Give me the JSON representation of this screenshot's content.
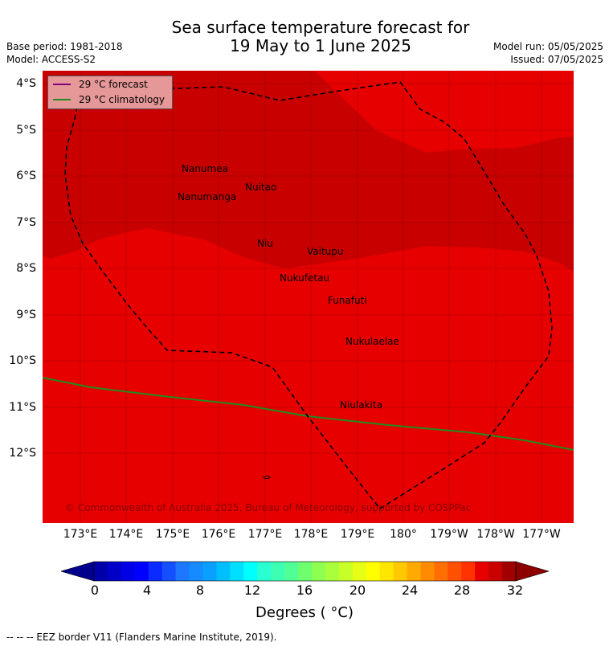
{
  "header": {
    "title_line1": "Sea surface temperature forecast for",
    "title_line2": "19 May to 1 June 2025",
    "base_period": "Base period: 1981-2018",
    "model": "Model: ACCESS-S2",
    "model_run": "Model run: 05/05/2025",
    "issued": "Issued: 07/05/2025"
  },
  "map": {
    "y_ticks": [
      "4°S",
      "5°S",
      "6°S",
      "7°S",
      "8°S",
      "9°S",
      "10°S",
      "11°S",
      "12°S"
    ],
    "x_ticks": [
      "173°E",
      "174°E",
      "175°E",
      "176°E",
      "177°E",
      "178°E",
      "179°E",
      "180°",
      "179°W",
      "178°W",
      "177°W"
    ],
    "places": [
      {
        "name": "Nanumea"
      },
      {
        "name": "Nuitao"
      },
      {
        "name": "Nanumanga"
      },
      {
        "name": "Niu"
      },
      {
        "name": "Vaitupu"
      },
      {
        "name": "Nukufetau"
      },
      {
        "name": "Funafuti"
      },
      {
        "name": "Nukulaelae"
      },
      {
        "name": "Niulakita"
      }
    ],
    "copyright": "© Commonwealth of Australia 2025, Bureau of Meteorology, supported by COSPPac",
    "colors": {
      "sst_28_30": "#e60000",
      "sst_30_31": "#c80000",
      "forecast_line": "#800080",
      "climatology_line": "#228b22"
    }
  },
  "legend": {
    "forecast": "29 °C  forecast",
    "climatology": "29 °C  climatology"
  },
  "colorbar": {
    "ticks": [
      "0",
      "4",
      "8",
      "12",
      "16",
      "20",
      "24",
      "28",
      "32"
    ],
    "label": "Degrees ( °C)",
    "colors": [
      "#00008c",
      "#0000aa",
      "#0000c8",
      "#0000e6",
      "#0000ff",
      "#0a2aff",
      "#1450ff",
      "#1e78ff",
      "#148cff",
      "#0aa0ff",
      "#00bfff",
      "#00dfff",
      "#00ffff",
      "#2affd2",
      "#3cffb4",
      "#50ff96",
      "#6eff6e",
      "#8cff50",
      "#aaff3c",
      "#c8ff28",
      "#e6ff14",
      "#ffff00",
      "#ffe600",
      "#ffc800",
      "#ffaa00",
      "#ff8c00",
      "#ff6e00",
      "#ff5000",
      "#ff3200",
      "#e60000",
      "#c80000",
      "#a00000",
      "#8c0000"
    ]
  },
  "footer": {
    "eez_note": "--  --  -- EEZ border V11 (Flanders Marine Institute, 2019)."
  }
}
